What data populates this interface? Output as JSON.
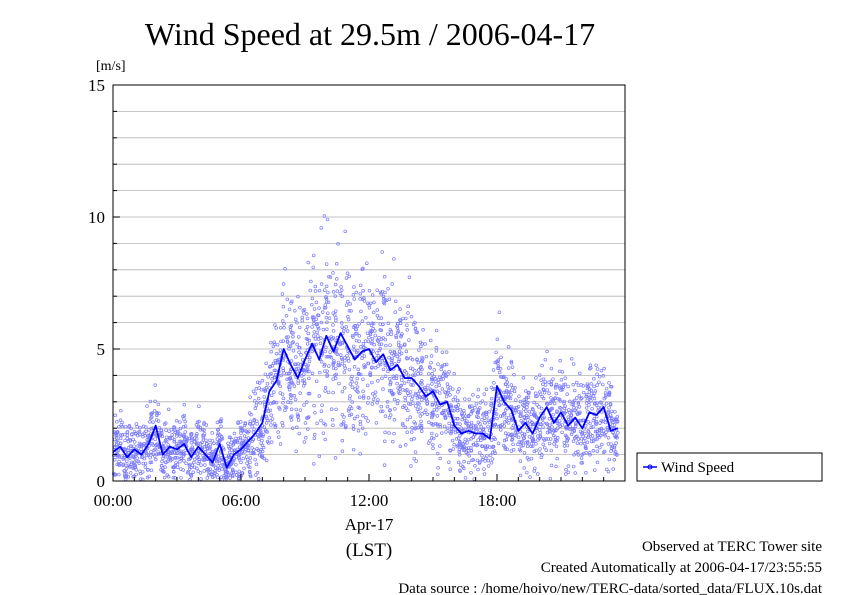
{
  "chart_data": {
    "type": "scatter",
    "title": "Wind Speed at 29.5m / 2006-04-17",
    "y_unit": "[m/s]",
    "ylim": [
      0,
      15
    ],
    "y_ticks": [
      0,
      5,
      10,
      15
    ],
    "xlim": [
      "2006-04-17 00:00",
      "2006-04-18 00:00"
    ],
    "x_ticks": [
      "00:00",
      "06:00",
      "12:00",
      "18:00"
    ],
    "x_date_label": "Apr-17",
    "x_tz_label": "(LST)",
    "grid": true,
    "legend_position": "right",
    "series": [
      {
        "name": "Wind Speed",
        "color": "#0000ff",
        "point_color": "#7a7aff",
        "x": [
          "00:00",
          "00:20",
          "00:40",
          "01:00",
          "01:20",
          "01:40",
          "02:00",
          "02:20",
          "02:40",
          "03:00",
          "03:20",
          "03:40",
          "04:00",
          "04:20",
          "04:40",
          "05:00",
          "05:20",
          "05:40",
          "06:00",
          "06:20",
          "06:40",
          "07:00",
          "07:20",
          "07:40",
          "08:00",
          "08:20",
          "08:40",
          "09:00",
          "09:20",
          "09:40",
          "10:00",
          "10:20",
          "10:40",
          "11:00",
          "11:20",
          "11:40",
          "12:00",
          "12:20",
          "12:40",
          "13:00",
          "13:20",
          "13:40",
          "14:00",
          "14:20",
          "14:40",
          "15:00",
          "15:20",
          "15:40",
          "16:00",
          "16:20",
          "16:40",
          "17:00",
          "17:20",
          "17:40",
          "18:00",
          "18:20",
          "18:40",
          "19:00",
          "19:20",
          "19:40",
          "20:00",
          "20:20",
          "20:40",
          "21:00",
          "21:20",
          "21:40",
          "22:00",
          "22:20",
          "22:40",
          "23:00",
          "23:20",
          "23:40"
        ],
        "values": [
          1.1,
          1.3,
          0.9,
          1.2,
          1.0,
          1.4,
          2.1,
          1.0,
          1.3,
          1.2,
          1.4,
          0.9,
          1.3,
          1.0,
          0.7,
          1.4,
          0.5,
          1.0,
          1.2,
          1.5,
          1.8,
          2.2,
          3.4,
          3.8,
          5.0,
          4.4,
          3.9,
          4.6,
          5.2,
          4.6,
          5.5,
          4.9,
          5.6,
          5.1,
          4.6,
          4.9,
          5.0,
          4.5,
          4.8,
          4.2,
          4.4,
          3.9,
          3.9,
          3.6,
          3.2,
          3.4,
          2.9,
          3.0,
          2.1,
          1.8,
          1.9,
          1.8,
          1.8,
          1.6,
          3.6,
          3.0,
          2.7,
          1.9,
          2.2,
          1.8,
          2.4,
          2.8,
          2.2,
          2.6,
          2.1,
          2.4,
          2.0,
          2.6,
          2.5,
          2.8,
          1.9,
          2.0
        ]
      }
    ]
  },
  "footer": {
    "observed": "Observed at TERC Tower site",
    "created": "Created Automatically at 2006-04-17/23:55:55",
    "source": "Data source : /home/hoivo/new/TERC-data/sorted_data/FLUX.10s.dat"
  }
}
